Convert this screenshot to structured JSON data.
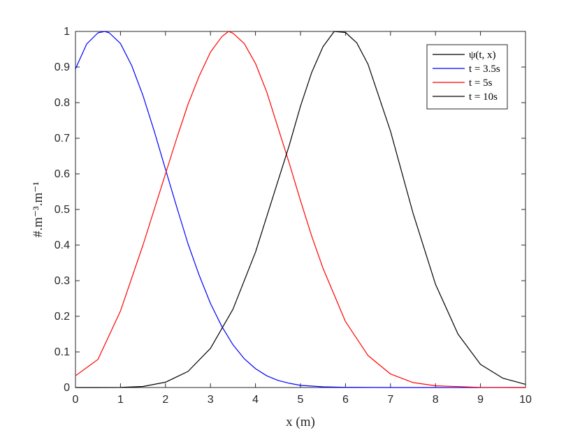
{
  "chart_data": {
    "type": "line",
    "xlabel": "x (m)",
    "ylabel": "#.m⁻³.m⁻¹",
    "xlim": [
      0,
      10
    ],
    "ylim": [
      0,
      1
    ],
    "xticks": [
      "0",
      "1",
      "2",
      "3",
      "4",
      "5",
      "6",
      "7",
      "8",
      "9",
      "10"
    ],
    "yticks": [
      "0",
      "0.1",
      "0.2",
      "0.3",
      "0.4",
      "0.5",
      "0.6",
      "0.7",
      "0.8",
      "0.9",
      "1"
    ],
    "grid": false,
    "legend_position": "top-right",
    "legend": [
      "ψ(t, x)",
      "t = 3.5s",
      "t = 5s",
      "t = 10s"
    ],
    "legend_colors": [
      "#000000",
      "#0000ff",
      "#ff0000",
      "#000000"
    ],
    "series": [
      {
        "name": "t = 3.5s",
        "color": "#0000ff",
        "x": [
          0,
          0.25,
          0.5,
          0.65,
          0.75,
          1,
          1.25,
          1.5,
          1.75,
          2,
          2.25,
          2.5,
          2.75,
          3,
          3.25,
          3.5,
          3.75,
          4,
          4.25,
          4.5,
          4.75,
          5,
          5.5,
          6,
          7,
          8,
          10
        ],
        "y": [
          0.895,
          0.965,
          0.996,
          1.0,
          0.996,
          0.966,
          0.904,
          0.82,
          0.72,
          0.613,
          0.507,
          0.404,
          0.315,
          0.236,
          0.172,
          0.12,
          0.081,
          0.053,
          0.033,
          0.02,
          0.012,
          0.006,
          0.002,
          0.0006,
          0,
          0,
          0
        ]
      },
      {
        "name": "t = 5s",
        "color": "#ff0000",
        "x": [
          0,
          0.5,
          1,
          1.5,
          2,
          2.25,
          2.5,
          2.75,
          3,
          3.25,
          3.4,
          3.5,
          3.75,
          4,
          4.25,
          4.5,
          4.75,
          5,
          5.25,
          5.5,
          6,
          6.5,
          7,
          7.5,
          8,
          9,
          10
        ],
        "y": [
          0.033,
          0.079,
          0.215,
          0.4,
          0.6,
          0.7,
          0.795,
          0.875,
          0.942,
          0.985,
          1.0,
          0.995,
          0.966,
          0.91,
          0.83,
          0.73,
          0.63,
          0.525,
          0.425,
          0.335,
          0.185,
          0.09,
          0.038,
          0.014,
          0.005,
          0.0003,
          0
        ]
      },
      {
        "name": "t = 10s",
        "color": "#000000",
        "x": [
          0,
          0.5,
          1,
          1.5,
          2,
          2.5,
          3,
          3.5,
          4,
          4.5,
          4.75,
          5,
          5.25,
          5.5,
          5.75,
          6,
          6.25,
          6.5,
          7,
          7.5,
          8,
          8.5,
          9,
          9.5,
          10
        ],
        "y": [
          0,
          0,
          0.0002,
          0.003,
          0.015,
          0.045,
          0.11,
          0.22,
          0.38,
          0.58,
          0.68,
          0.79,
          0.885,
          0.957,
          1.0,
          0.997,
          0.968,
          0.908,
          0.72,
          0.49,
          0.29,
          0.15,
          0.065,
          0.026,
          0.009
        ]
      }
    ]
  }
}
